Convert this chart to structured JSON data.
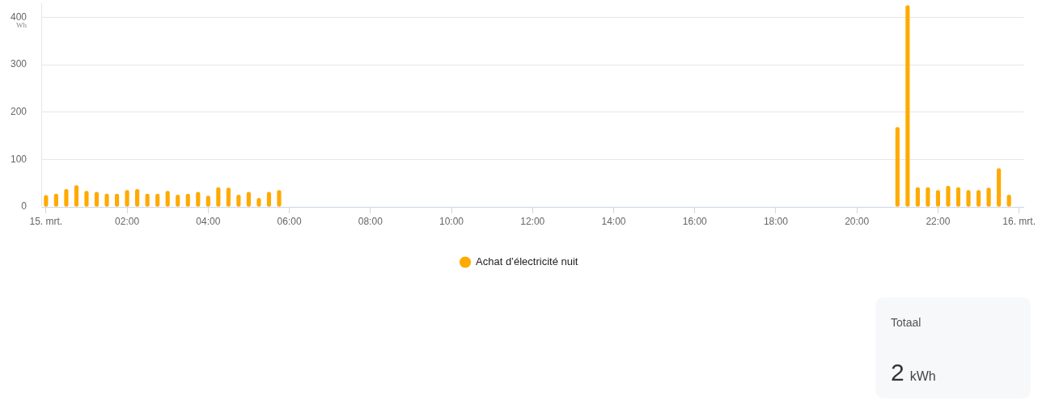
{
  "chart_data": [
    {
      "type": "bar",
      "ylabel": "Wh",
      "x": [
        "--03-15T00:00",
        "--03-15T00:15",
        "--03-15T00:30",
        "--03-15T00:45",
        "--03-15T01:00",
        "--03-15T01:15",
        "--03-15T01:30",
        "--03-15T01:45",
        "--03-15T02:00",
        "--03-15T02:15",
        "--03-15T02:30",
        "--03-15T02:45",
        "--03-15T03:00",
        "--03-15T03:15",
        "--03-15T03:30",
        "--03-15T03:45",
        "--03-15T04:00",
        "--03-15T04:15",
        "--03-15T04:30",
        "--03-15T04:45",
        "--03-15T05:00",
        "--03-15T05:15",
        "--03-15T05:30",
        "--03-15T05:45",
        "--03-15T21:00",
        "--03-15T21:15",
        "--03-15T21:30",
        "--03-15T21:45",
        "--03-15T22:00",
        "--03-15T22:15",
        "--03-15T22:30",
        "--03-15T22:45",
        "--03-15T23:00",
        "--03-15T23:15",
        "--03-15T23:30",
        "--03-15T23:45"
      ],
      "series": [
        {
          "name": "Achat d’électricité nuit",
          "color": "#ffaa00",
          "values": [
            24,
            27,
            37,
            45,
            33,
            31,
            27,
            27,
            35,
            37,
            27,
            27,
            33,
            25,
            27,
            31,
            23,
            41,
            40,
            25,
            31,
            18,
            31,
            35,
            168,
            425,
            41,
            41,
            35,
            44,
            41,
            35,
            35,
            40,
            81,
            25
          ]
        }
      ],
      "xlim": [
        "--03-14T23:53",
        "--03-16T00:07"
      ],
      "xticks": [
        {
          "value": "--03-15T00:00",
          "label": "15. mrt."
        },
        {
          "value": "--03-15T02:00",
          "label": "02:00"
        },
        {
          "value": "--03-15T04:00",
          "label": "04:00"
        },
        {
          "value": "--03-15T06:00",
          "label": "06:00"
        },
        {
          "value": "--03-15T08:00",
          "label": "08:00"
        },
        {
          "value": "--03-15T10:00",
          "label": "10:00"
        },
        {
          "value": "--03-15T12:00",
          "label": "12:00"
        },
        {
          "value": "--03-15T14:00",
          "label": "14:00"
        },
        {
          "value": "--03-15T16:00",
          "label": "16:00"
        },
        {
          "value": "--03-15T18:00",
          "label": "18:00"
        },
        {
          "value": "--03-15T20:00",
          "label": "20:00"
        },
        {
          "value": "--03-15T22:00",
          "label": "22:00"
        },
        {
          "value": "--03-16T00:00",
          "label": "16. mrt."
        }
      ],
      "ylim": [
        0,
        430
      ],
      "yticks": [
        0,
        100,
        200,
        300,
        400
      ],
      "grid": "y",
      "legend": "bottom"
    },
    {
      "type": "other",
      "title": "Totaal",
      "annotations": [
        "2 kWh"
      ]
    }
  ]
}
